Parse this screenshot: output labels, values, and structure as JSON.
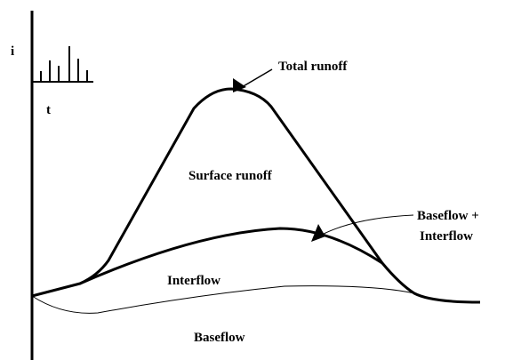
{
  "axes": {
    "y_label": "i",
    "x_label": "t"
  },
  "labels": {
    "total_runoff": "Total runoff",
    "surface_runoff": "Surface runoff",
    "baseflow_interflow_1": "Baseflow +",
    "baseflow_interflow_2": "Interflow",
    "interflow": "Interflow",
    "baseflow": "Baseflow"
  }
}
